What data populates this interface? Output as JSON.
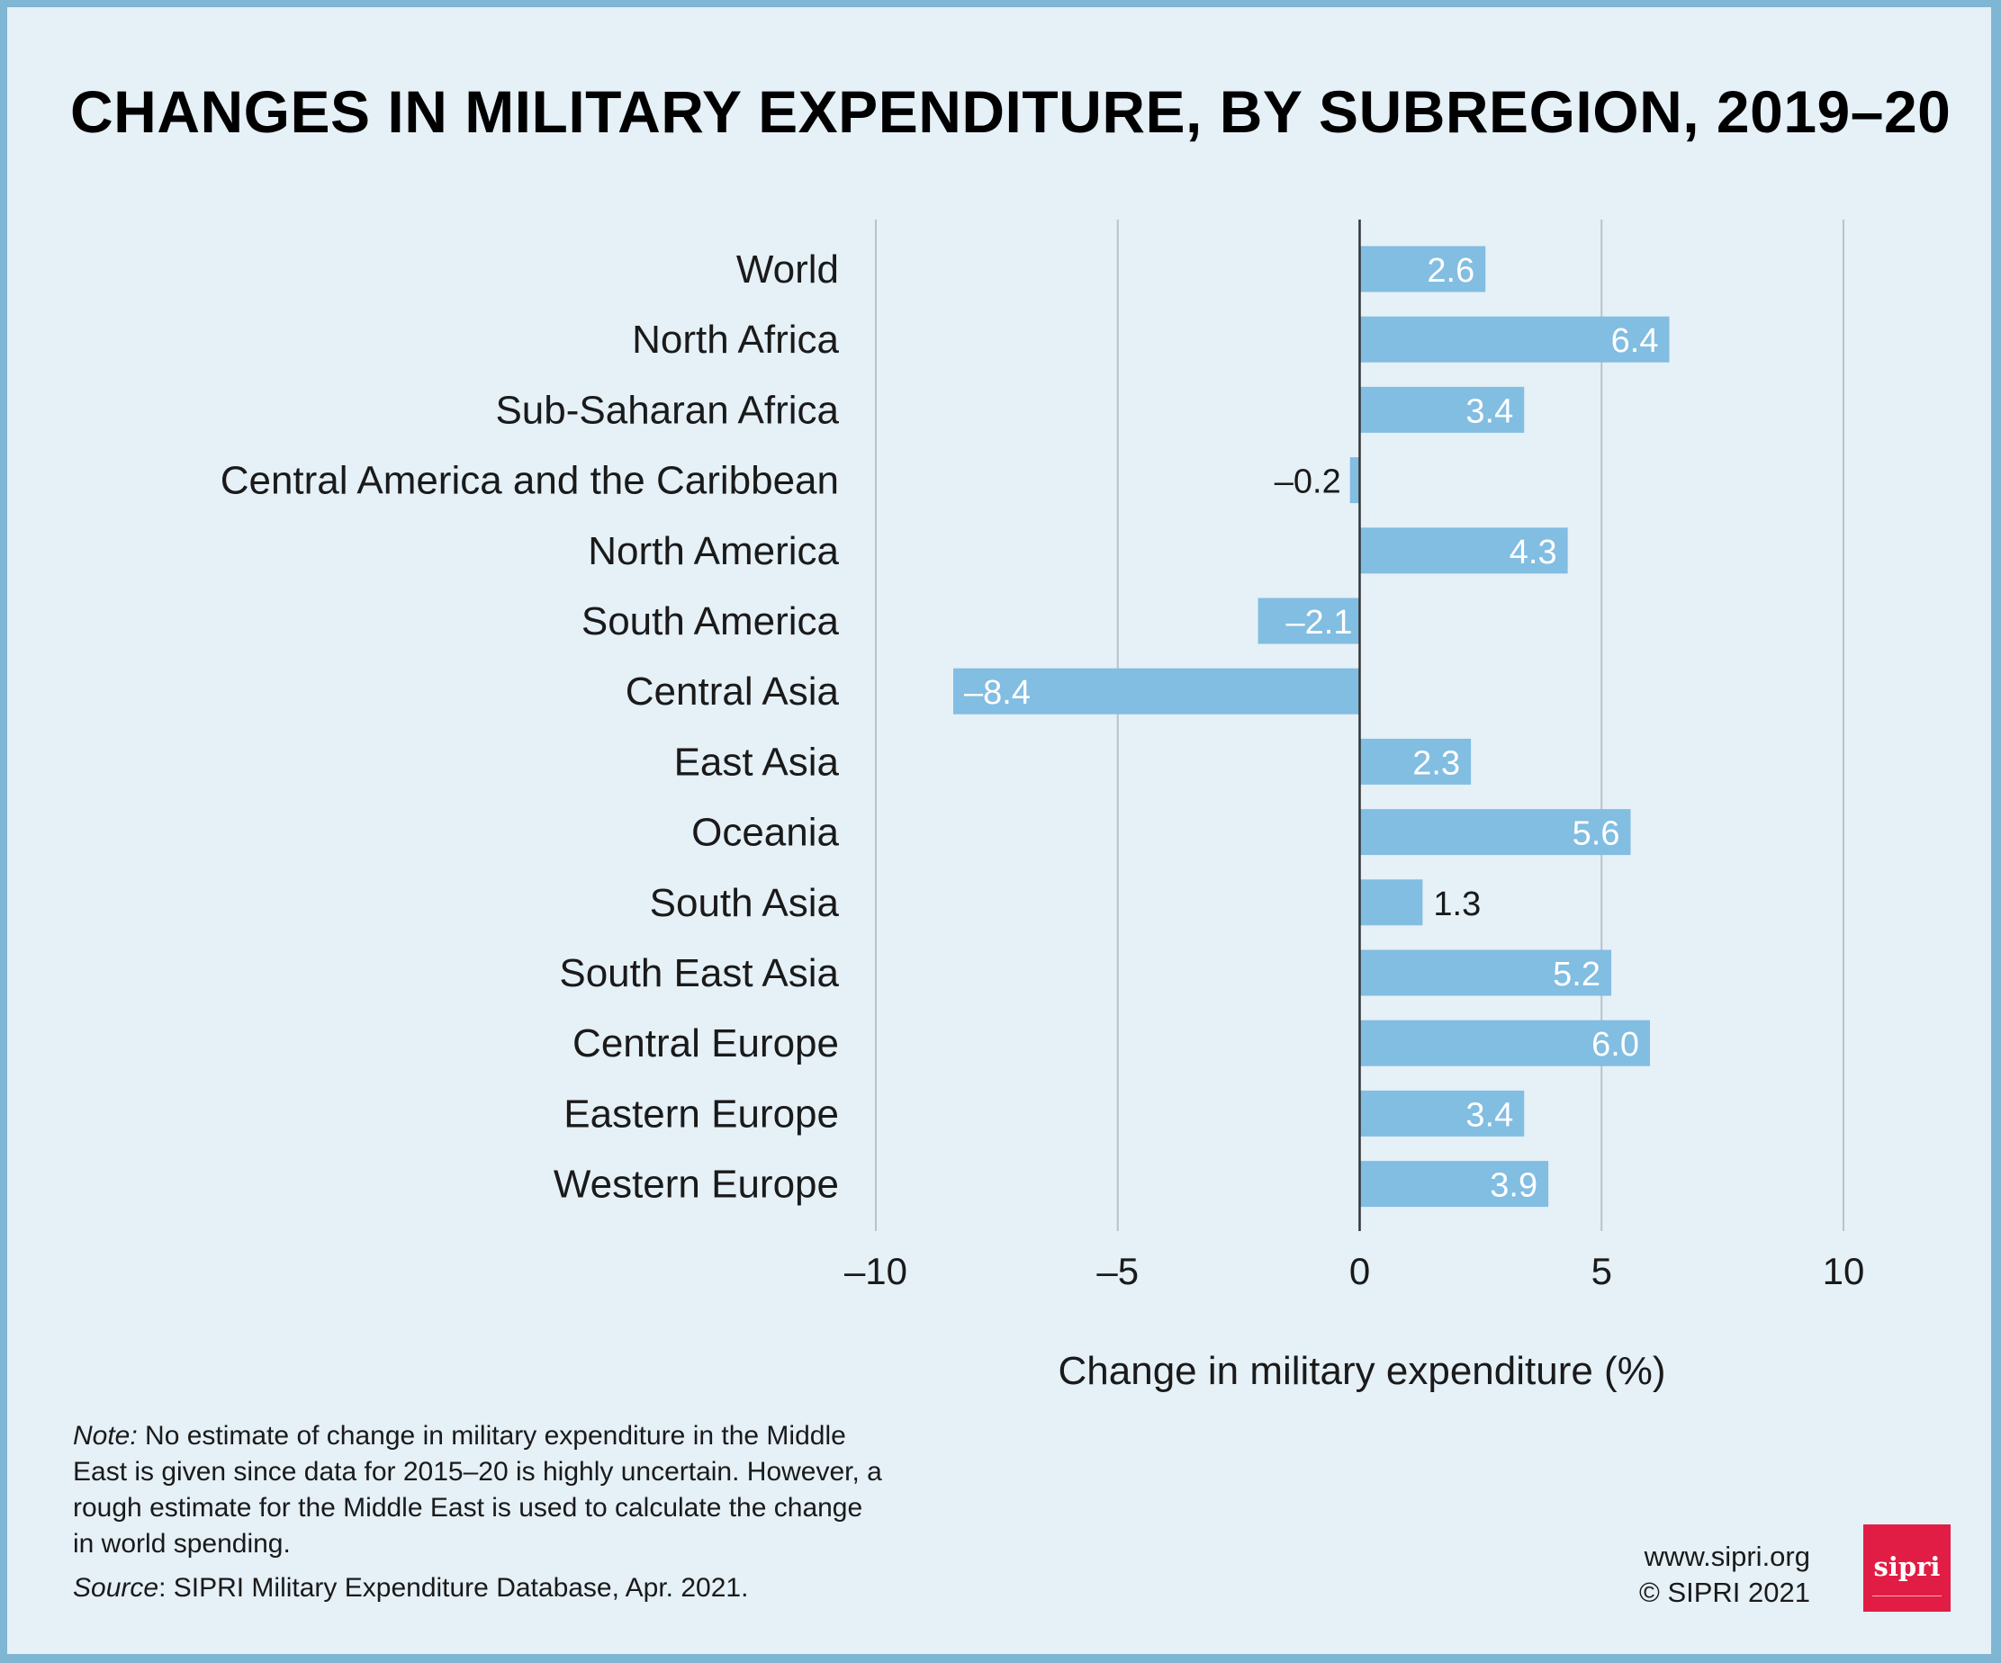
{
  "chart_data": {
    "type": "bar",
    "orientation": "horizontal",
    "title": "CHANGES IN MILITARY EXPENDITURE, BY SUBREGION, 2019–20",
    "xlabel": "Change in military expenditure (%)",
    "ylabel": "",
    "xlim": [
      -10,
      10
    ],
    "xticks": [
      -10,
      -5,
      0,
      5,
      10
    ],
    "xtick_labels": [
      "–10",
      "–5",
      "0",
      "5",
      "10"
    ],
    "grid": "vertical",
    "categories": [
      "World",
      "North Africa",
      "Sub-Saharan Africa",
      "Central America and the Caribbean",
      "North America",
      "South America",
      "Central Asia",
      "East Asia",
      "Oceania",
      "South Asia",
      "South East Asia",
      "Central Europe",
      "Eastern Europe",
      "Western Europe"
    ],
    "values": [
      2.6,
      6.4,
      3.4,
      -0.2,
      4.3,
      -2.1,
      -8.4,
      2.3,
      5.6,
      1.3,
      5.2,
      6.0,
      3.4,
      3.9
    ],
    "value_labels": [
      "2.6",
      "6.4",
      "3.4",
      "–0.2",
      "4.3",
      "–2.1",
      "–8.4",
      "2.3",
      "5.6",
      "1.3",
      "5.2",
      "6.0",
      "3.4",
      "3.9"
    ],
    "colors": {
      "bar": "#82bde2",
      "background": "#e5f0f7",
      "border": "#7fb6d3",
      "grid": "#b8c2cc",
      "axis": "#333333"
    }
  },
  "note": {
    "label": "Note:",
    "text": " No estimate of change in military expenditure in the Middle East is given since data for 2015–20 is highly uncertain. However, a rough estimate for the Middle East is used to calculate the change in world spending."
  },
  "source": {
    "label": "Source",
    "text": ": SIPRI Military Expenditure Database, Apr. 2021."
  },
  "footer": {
    "url": "www.sipri.org",
    "copyright": "© SIPRI 2021"
  },
  "logo": {
    "text": "sipri",
    "color": "#e21d45"
  }
}
